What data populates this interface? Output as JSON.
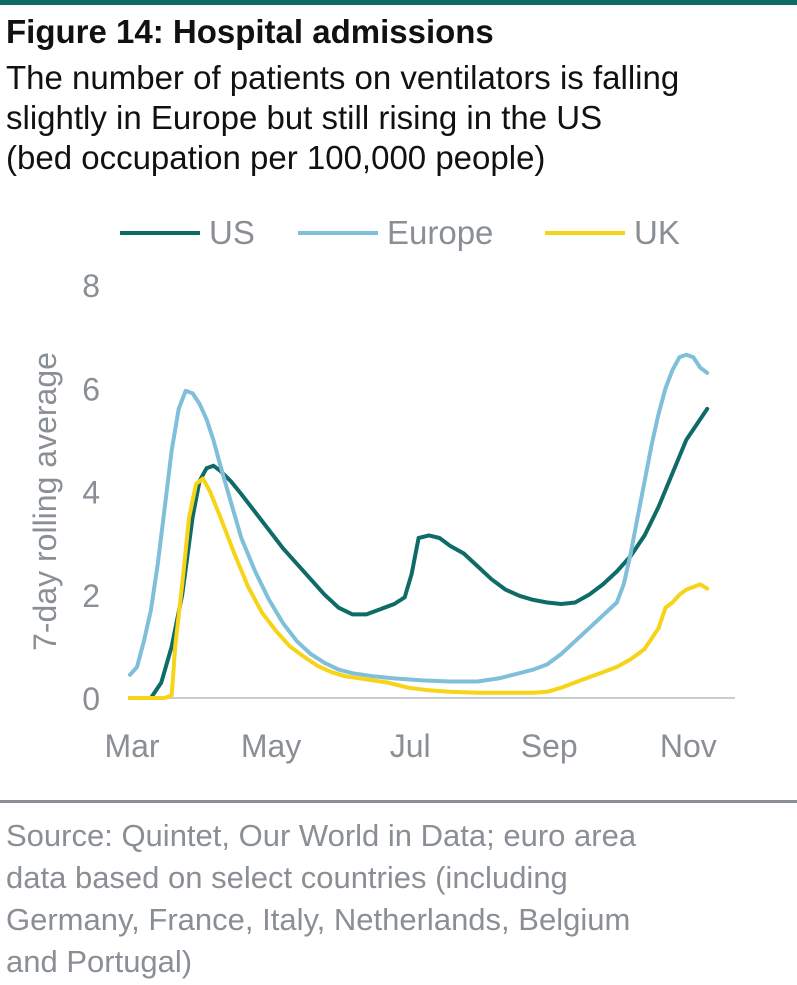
{
  "title": "Figure 14: Hospital admissions",
  "subtitle_lines": [
    "The number of patients on ventilators is falling",
    "slightly in Europe but still rising in the US",
    "(bed occupation per 100,000 people)"
  ],
  "source_lines": [
    "Source: Quintet, Our World in Data; euro area",
    "data based on select countries (including",
    "Germany, France, Italy, Netherlands, Belgium",
    "and Portugal)"
  ],
  "colors": {
    "accent_rule": "#0f6b68",
    "axis_text": "#8a8f95",
    "US": "#0f6b68",
    "Europe": "#7fbfd9",
    "UK": "#f7d417"
  },
  "chart_data": {
    "type": "line",
    "title": "",
    "xlabel": "",
    "ylabel": "7-day rolling average",
    "ylim": [
      0,
      8
    ],
    "yticks": [
      0,
      2,
      4,
      6,
      8
    ],
    "xlim": [
      0,
      8.7
    ],
    "xticks": [
      {
        "label": "Mar",
        "x": 0
      },
      {
        "label": "May",
        "x": 2
      },
      {
        "label": "Jul",
        "x": 4
      },
      {
        "label": "Sep",
        "x": 6
      },
      {
        "label": "Nov",
        "x": 8
      }
    ],
    "x_unit": "months since 1 Mar",
    "grid": false,
    "legend_position": "top",
    "series": [
      {
        "name": "US",
        "color": "#0f6b68",
        "points": [
          [
            0,
            0
          ],
          [
            0.3,
            0
          ],
          [
            0.45,
            0.3
          ],
          [
            0.6,
            1.0
          ],
          [
            0.75,
            2.0
          ],
          [
            0.9,
            3.5
          ],
          [
            1.0,
            4.2
          ],
          [
            1.1,
            4.45
          ],
          [
            1.2,
            4.5
          ],
          [
            1.3,
            4.4
          ],
          [
            1.45,
            4.2
          ],
          [
            1.6,
            3.95
          ],
          [
            1.8,
            3.6
          ],
          [
            2.0,
            3.25
          ],
          [
            2.2,
            2.9
          ],
          [
            2.4,
            2.6
          ],
          [
            2.6,
            2.3
          ],
          [
            2.8,
            2.0
          ],
          [
            3.0,
            1.75
          ],
          [
            3.2,
            1.62
          ],
          [
            3.4,
            1.62
          ],
          [
            3.6,
            1.72
          ],
          [
            3.8,
            1.82
          ],
          [
            3.95,
            1.95
          ],
          [
            4.05,
            2.4
          ],
          [
            4.15,
            3.1
          ],
          [
            4.3,
            3.15
          ],
          [
            4.45,
            3.1
          ],
          [
            4.6,
            2.95
          ],
          [
            4.8,
            2.8
          ],
          [
            5.0,
            2.55
          ],
          [
            5.2,
            2.3
          ],
          [
            5.4,
            2.1
          ],
          [
            5.6,
            1.98
          ],
          [
            5.8,
            1.9
          ],
          [
            6.0,
            1.85
          ],
          [
            6.2,
            1.82
          ],
          [
            6.4,
            1.85
          ],
          [
            6.6,
            2.0
          ],
          [
            6.8,
            2.2
          ],
          [
            7.0,
            2.45
          ],
          [
            7.2,
            2.75
          ],
          [
            7.4,
            3.15
          ],
          [
            7.6,
            3.7
          ],
          [
            7.8,
            4.35
          ],
          [
            8.0,
            5.0
          ],
          [
            8.2,
            5.4
          ],
          [
            8.3,
            5.6
          ]
        ]
      },
      {
        "name": "Europe",
        "color": "#7fbfd9",
        "points": [
          [
            0,
            0.45
          ],
          [
            0.1,
            0.6
          ],
          [
            0.2,
            1.1
          ],
          [
            0.3,
            1.7
          ],
          [
            0.4,
            2.6
          ],
          [
            0.5,
            3.7
          ],
          [
            0.6,
            4.8
          ],
          [
            0.7,
            5.6
          ],
          [
            0.8,
            5.95
          ],
          [
            0.9,
            5.9
          ],
          [
            1.0,
            5.7
          ],
          [
            1.1,
            5.4
          ],
          [
            1.2,
            5.0
          ],
          [
            1.3,
            4.5
          ],
          [
            1.45,
            3.8
          ],
          [
            1.6,
            3.1
          ],
          [
            1.8,
            2.45
          ],
          [
            2.0,
            1.9
          ],
          [
            2.2,
            1.45
          ],
          [
            2.4,
            1.1
          ],
          [
            2.6,
            0.85
          ],
          [
            2.8,
            0.68
          ],
          [
            3.0,
            0.55
          ],
          [
            3.2,
            0.48
          ],
          [
            3.5,
            0.42
          ],
          [
            3.8,
            0.38
          ],
          [
            4.2,
            0.34
          ],
          [
            4.6,
            0.32
          ],
          [
            5.0,
            0.32
          ],
          [
            5.3,
            0.38
          ],
          [
            5.6,
            0.48
          ],
          [
            5.8,
            0.55
          ],
          [
            6.0,
            0.65
          ],
          [
            6.2,
            0.85
          ],
          [
            6.4,
            1.1
          ],
          [
            6.6,
            1.35
          ],
          [
            6.8,
            1.6
          ],
          [
            7.0,
            1.85
          ],
          [
            7.1,
            2.2
          ],
          [
            7.2,
            2.8
          ],
          [
            7.3,
            3.5
          ],
          [
            7.4,
            4.2
          ],
          [
            7.5,
            4.9
          ],
          [
            7.6,
            5.5
          ],
          [
            7.7,
            6.0
          ],
          [
            7.8,
            6.35
          ],
          [
            7.9,
            6.6
          ],
          [
            8.0,
            6.65
          ],
          [
            8.1,
            6.6
          ],
          [
            8.2,
            6.4
          ],
          [
            8.3,
            6.3
          ]
        ]
      },
      {
        "name": "UK",
        "color": "#f7d417",
        "points": [
          [
            0,
            0
          ],
          [
            0.5,
            0
          ],
          [
            0.6,
            0.05
          ],
          [
            0.65,
            1.0
          ],
          [
            0.75,
            2.2
          ],
          [
            0.85,
            3.5
          ],
          [
            0.95,
            4.15
          ],
          [
            1.05,
            4.25
          ],
          [
            1.15,
            4.0
          ],
          [
            1.3,
            3.5
          ],
          [
            1.5,
            2.8
          ],
          [
            1.7,
            2.15
          ],
          [
            1.9,
            1.65
          ],
          [
            2.1,
            1.3
          ],
          [
            2.3,
            1.0
          ],
          [
            2.5,
            0.8
          ],
          [
            2.7,
            0.62
          ],
          [
            2.9,
            0.5
          ],
          [
            3.1,
            0.42
          ],
          [
            3.4,
            0.36
          ],
          [
            3.7,
            0.3
          ],
          [
            4.0,
            0.2
          ],
          [
            4.3,
            0.15
          ],
          [
            4.6,
            0.12
          ],
          [
            5.0,
            0.1
          ],
          [
            5.4,
            0.1
          ],
          [
            5.8,
            0.1
          ],
          [
            6.0,
            0.12
          ],
          [
            6.2,
            0.2
          ],
          [
            6.5,
            0.35
          ],
          [
            6.8,
            0.5
          ],
          [
            7.0,
            0.6
          ],
          [
            7.2,
            0.75
          ],
          [
            7.4,
            0.95
          ],
          [
            7.6,
            1.35
          ],
          [
            7.7,
            1.75
          ],
          [
            7.8,
            1.85
          ],
          [
            7.9,
            2.0
          ],
          [
            8.0,
            2.1
          ],
          [
            8.1,
            2.15
          ],
          [
            8.2,
            2.2
          ],
          [
            8.3,
            2.12
          ]
        ]
      }
    ]
  }
}
